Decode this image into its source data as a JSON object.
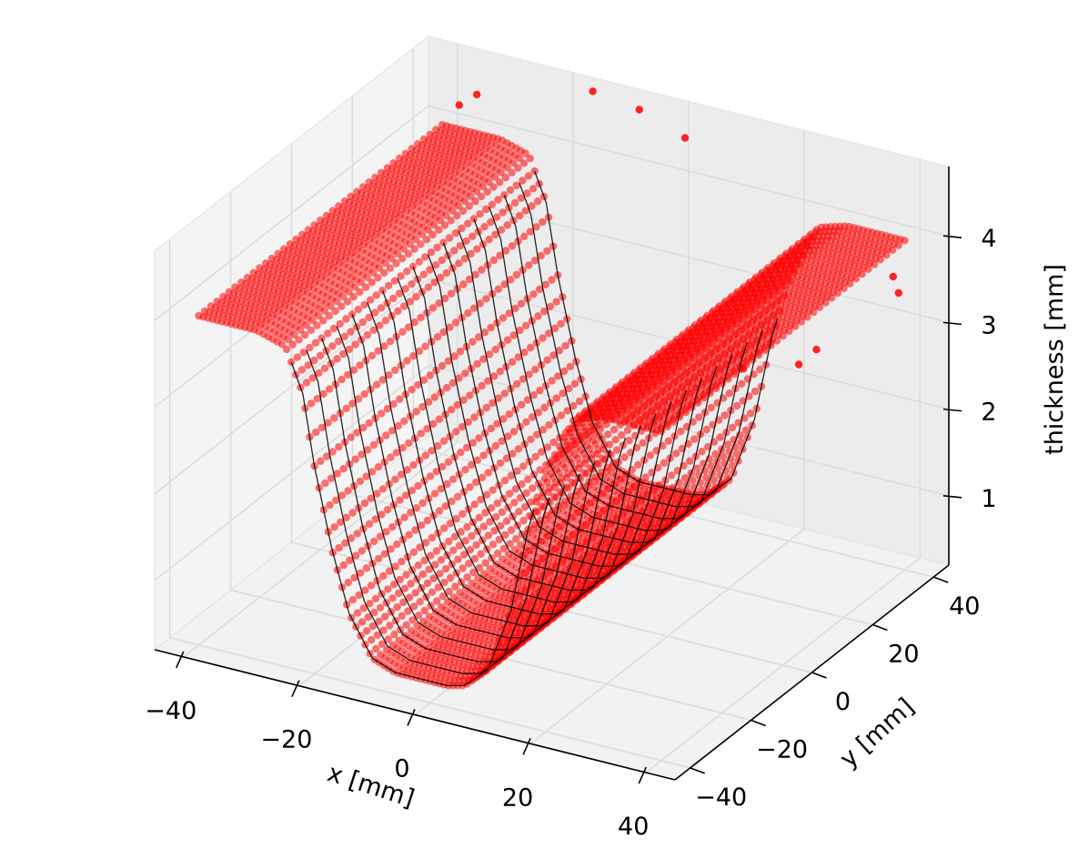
{
  "chart_data": {
    "type": "scatter",
    "projection": "3d",
    "title": "",
    "xlabel": "x [mm]",
    "ylabel": "y [mm]",
    "zlabel": "thickness [mm]",
    "xlim": [
      -45,
      45
    ],
    "ylim": [
      -45,
      45
    ],
    "zlim": [
      0.2,
      4.8
    ],
    "x_ticks": [
      "−40",
      "−20",
      "0",
      "20",
      "40"
    ],
    "y_ticks": [
      "−40",
      "−20",
      "0",
      "20",
      "40"
    ],
    "z_ticks": [
      "1",
      "2",
      "3",
      "4"
    ],
    "grid": true,
    "marker_color": "#ff0000",
    "line_color": "#000000",
    "profile": {
      "x": [
        -40,
        -30,
        -25,
        -22,
        -20,
        -17,
        -14,
        -10,
        -6,
        -3,
        0,
        3,
        6,
        10,
        14,
        17,
        20,
        25,
        30,
        40
      ],
      "thickness": [
        4.0,
        4.0,
        3.9,
        3.4,
        2.6,
        1.7,
        1.0,
        0.55,
        0.45,
        0.45,
        0.45,
        0.45,
        0.5,
        0.75,
        1.5,
        2.5,
        3.2,
        3.9,
        4.0,
        4.0
      ]
    },
    "y_range": [
      -40,
      40
    ],
    "outlier_points": [
      {
        "x": -15,
        "y": 42,
        "thickness": 4.75
      },
      {
        "x": -8,
        "y": 44,
        "thickness": 4.6
      },
      {
        "x": 2,
        "y": 40,
        "thickness": 4.55
      },
      {
        "x": -34,
        "y": 40,
        "thickness": 4.45
      },
      {
        "x": -36,
        "y": 38,
        "thickness": 4.35
      },
      {
        "x": 38,
        "y": 40,
        "thickness": 3.55
      },
      {
        "x": 40,
        "y": 38,
        "thickness": 3.45
      },
      {
        "x": 30,
        "y": 30,
        "thickness": 2.85
      },
      {
        "x": 20,
        "y": 25,
        "thickness": 2.6
      },
      {
        "x": 28,
        "y": 28,
        "thickness": 2.7
      }
    ]
  }
}
